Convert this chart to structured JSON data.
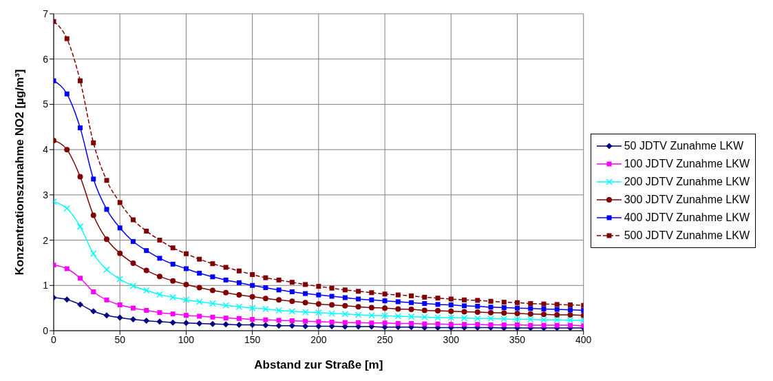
{
  "chart_data": {
    "type": "line",
    "xlabel": "Abstand zur Straße [m]",
    "ylabel": "Konzentrationszunahme NO2 [µg/m³]",
    "x": [
      0,
      10,
      20,
      30,
      40,
      50,
      60,
      70,
      80,
      90,
      100,
      110,
      120,
      130,
      140,
      150,
      160,
      170,
      180,
      190,
      200,
      210,
      220,
      230,
      240,
      250,
      260,
      270,
      280,
      290,
      300,
      310,
      320,
      330,
      340,
      350,
      360,
      370,
      380,
      390,
      400
    ],
    "series": [
      {
        "name": "50 JDTV Zunahme LKW",
        "color": "#000080",
        "marker": "diamond",
        "line_style": "solid",
        "values": [
          0.73,
          0.69,
          0.58,
          0.43,
          0.34,
          0.29,
          0.25,
          0.22,
          0.2,
          0.18,
          0.17,
          0.16,
          0.15,
          0.14,
          0.13,
          0.13,
          0.12,
          0.11,
          0.11,
          0.1,
          0.1,
          0.1,
          0.09,
          0.09,
          0.09,
          0.08,
          0.08,
          0.08,
          0.07,
          0.07,
          0.07,
          0.07,
          0.07,
          0.07,
          0.06,
          0.06,
          0.06,
          0.06,
          0.06,
          0.06,
          0.06
        ]
      },
      {
        "name": "100 JDTV Zunahme LKW",
        "color": "#ff00ff",
        "marker": "square",
        "line_style": "solid",
        "values": [
          1.45,
          1.37,
          1.16,
          0.86,
          0.68,
          0.57,
          0.5,
          0.45,
          0.4,
          0.37,
          0.34,
          0.32,
          0.3,
          0.28,
          0.27,
          0.25,
          0.24,
          0.23,
          0.22,
          0.21,
          0.2,
          0.19,
          0.18,
          0.18,
          0.17,
          0.17,
          0.16,
          0.16,
          0.15,
          0.15,
          0.14,
          0.14,
          0.14,
          0.13,
          0.13,
          0.13,
          0.12,
          0.12,
          0.12,
          0.12,
          0.11
        ]
      },
      {
        "name": "200 JDTV Zunahme LKW",
        "color": "#00ffff",
        "marker": "cross",
        "line_style": "solid",
        "values": [
          2.85,
          2.7,
          2.3,
          1.7,
          1.35,
          1.14,
          0.99,
          0.89,
          0.8,
          0.74,
          0.68,
          0.64,
          0.6,
          0.56,
          0.53,
          0.5,
          0.48,
          0.45,
          0.43,
          0.41,
          0.4,
          0.38,
          0.37,
          0.35,
          0.34,
          0.33,
          0.32,
          0.31,
          0.3,
          0.29,
          0.29,
          0.28,
          0.27,
          0.27,
          0.26,
          0.25,
          0.25,
          0.24,
          0.24,
          0.23,
          0.23
        ]
      },
      {
        "name": "300 JDTV Zunahme LKW",
        "color": "#800000",
        "marker": "circle",
        "line_style": "solid",
        "values": [
          4.2,
          4.0,
          3.4,
          2.55,
          2.02,
          1.71,
          1.49,
          1.33,
          1.2,
          1.1,
          1.02,
          0.95,
          0.89,
          0.84,
          0.79,
          0.75,
          0.71,
          0.68,
          0.65,
          0.62,
          0.59,
          0.57,
          0.55,
          0.53,
          0.51,
          0.5,
          0.48,
          0.47,
          0.45,
          0.44,
          0.43,
          0.42,
          0.41,
          0.4,
          0.39,
          0.38,
          0.37,
          0.36,
          0.35,
          0.35,
          0.34
        ]
      },
      {
        "name": "400 JDTV Zunahme LKW",
        "color": "#0000ff",
        "marker": "square",
        "line_style": "solid",
        "values": [
          5.52,
          5.23,
          4.48,
          3.35,
          2.68,
          2.27,
          1.97,
          1.77,
          1.6,
          1.47,
          1.37,
          1.27,
          1.19,
          1.12,
          1.06,
          1.0,
          0.95,
          0.9,
          0.86,
          0.82,
          0.79,
          0.76,
          0.73,
          0.7,
          0.68,
          0.66,
          0.64,
          0.62,
          0.6,
          0.58,
          0.57,
          0.55,
          0.54,
          0.52,
          0.51,
          0.5,
          0.49,
          0.48,
          0.47,
          0.46,
          0.45
        ]
      },
      {
        "name": "500 JDTV Zunahme LKW",
        "color": "#800000",
        "marker": "square",
        "line_style": "dashed",
        "values": [
          6.83,
          6.45,
          5.52,
          4.15,
          3.32,
          2.83,
          2.45,
          2.2,
          2.0,
          1.83,
          1.7,
          1.58,
          1.48,
          1.4,
          1.32,
          1.24,
          1.17,
          1.12,
          1.07,
          1.02,
          0.98,
          0.94,
          0.9,
          0.87,
          0.84,
          0.81,
          0.79,
          0.77,
          0.74,
          0.72,
          0.7,
          0.68,
          0.67,
          0.65,
          0.63,
          0.62,
          0.6,
          0.59,
          0.58,
          0.57,
          0.56
        ]
      }
    ],
    "xlim": [
      0,
      400
    ],
    "xticks": [
      0,
      50,
      100,
      150,
      200,
      250,
      300,
      350,
      400
    ],
    "ylim": [
      0,
      7
    ],
    "yticks": [
      0,
      1,
      2,
      3,
      4,
      5,
      6,
      7
    ],
    "grid": true,
    "legend": "right"
  }
}
